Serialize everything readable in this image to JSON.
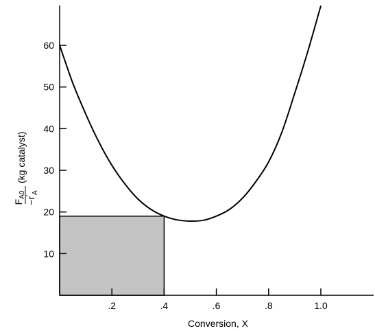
{
  "chart_data": {
    "type": "line",
    "xlabel": "Conversion, X",
    "ylabel": {
      "numerator": "F",
      "numerator_sub": "A0",
      "denominator": "−r",
      "denominator_sup": "′",
      "denominator_sub": "A",
      "unit": "(kg catalyst)"
    },
    "xlim": [
      0,
      1.2
    ],
    "ylim": [
      0,
      69.5
    ],
    "x_ticks": [
      {
        "value": 0.2,
        "label": ".2"
      },
      {
        "value": 0.4,
        "label": ".4"
      },
      {
        "value": 0.6,
        "label": ".6"
      },
      {
        "value": 0.8,
        "label": ".8"
      },
      {
        "value": 1.0,
        "label": "1.0"
      }
    ],
    "y_ticks": [
      {
        "value": 10,
        "label": "10"
      },
      {
        "value": 20,
        "label": "20"
      },
      {
        "value": 30,
        "label": "30"
      },
      {
        "value": 40,
        "label": "40"
      },
      {
        "value": 50,
        "label": "50"
      },
      {
        "value": 60,
        "label": "60"
      }
    ],
    "series": [
      {
        "x": [
          0.0,
          0.05,
          0.1,
          0.15,
          0.2,
          0.25,
          0.3,
          0.35,
          0.4,
          0.45,
          0.5,
          0.55,
          0.6,
          0.65,
          0.7,
          0.75,
          0.8,
          0.85,
          0.9,
          0.95,
          1.0
        ],
        "y": [
          60,
          51,
          43.5,
          36.8,
          31.2,
          26.7,
          23.1,
          20.6,
          19.0,
          18.1,
          17.8,
          18.0,
          19.0,
          20.6,
          23.3,
          27.2,
          32.0,
          39.0,
          48.5,
          58.5,
          69.5
        ]
      }
    ],
    "shaded_region": {
      "x": [
        0,
        0.4
      ],
      "y": [
        0,
        19
      ],
      "color": "#c4c4c4"
    },
    "colors": {
      "line": "#000000",
      "shade": "#c4c4c4",
      "shade_edge": "#000000"
    },
    "grid": false
  }
}
